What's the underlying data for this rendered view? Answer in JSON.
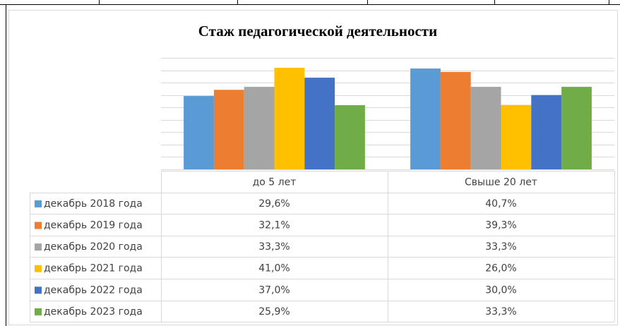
{
  "chart_data": {
    "type": "bar",
    "title": "Стаж педагогической деятельности",
    "categories": [
      "до 5 лет",
      "Свыше 20 лет"
    ],
    "series": [
      {
        "name": "декабрь 2018 года",
        "color": "#5b9bd5",
        "values": [
          29.6,
          40.7
        ],
        "value_labels": [
          "29,6%",
          "40,7%"
        ]
      },
      {
        "name": "декабрь 2019 года",
        "color": "#ed7d31",
        "values": [
          32.1,
          39.3
        ],
        "value_labels": [
          "32,1%",
          "39,3%"
        ]
      },
      {
        "name": "декабрь 2020 года",
        "color": "#a5a5a5",
        "values": [
          33.3,
          33.3
        ],
        "value_labels": [
          "33,3%",
          "33,3%"
        ]
      },
      {
        "name": "декабрь 2021 года",
        "color": "#ffc000",
        "values": [
          41.0,
          26.0
        ],
        "value_labels": [
          "41,0%",
          "26,0%"
        ]
      },
      {
        "name": "декабрь 2022 года",
        "color": "#4472c4",
        "values": [
          37.0,
          30.0
        ],
        "value_labels": [
          "37,0%",
          "30,0%"
        ]
      },
      {
        "name": "декабрь 2023 года",
        "color": "#70ad47",
        "values": [
          25.9,
          33.3
        ],
        "value_labels": [
          "25,9%",
          "33,3%"
        ]
      }
    ],
    "ylim": [
      0,
      45
    ],
    "yticks": [
      0,
      5,
      10,
      15,
      20,
      25,
      30,
      35,
      40,
      45
    ],
    "grid": true,
    "data_table": true
  }
}
